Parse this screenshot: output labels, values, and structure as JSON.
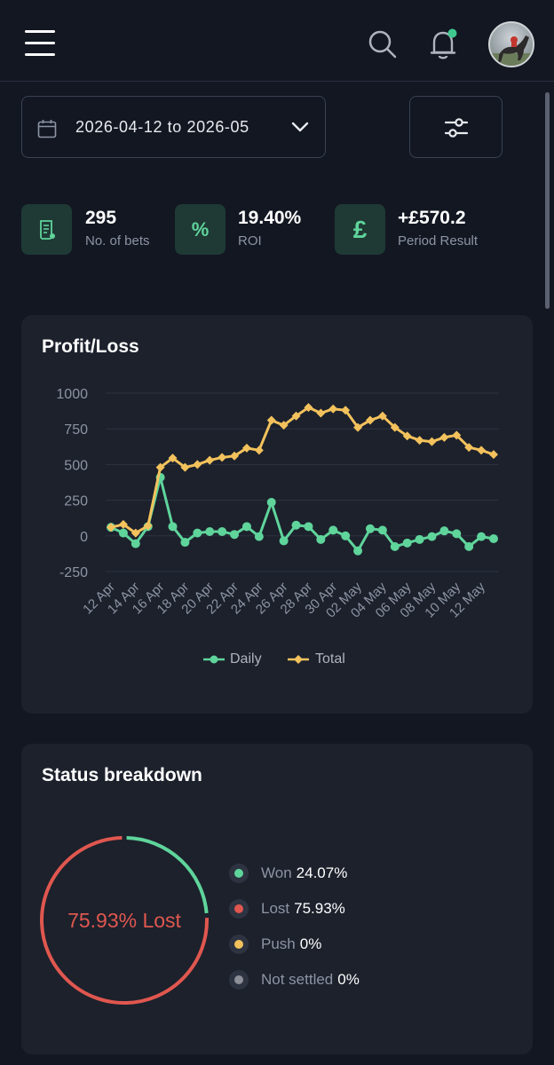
{
  "header": {
    "menu_icon": "hamburger-icon",
    "search_icon": "search-icon",
    "notification_icon": "bell-icon",
    "notification_dot_color": "#3fc98f",
    "avatar": "user-avatar"
  },
  "filters": {
    "date_range": "2026-04-12 to 2026-05",
    "calendar_icon": "calendar-icon",
    "dropdown_icon": "chevron-down-icon",
    "filter_icon": "sliders-icon"
  },
  "stats": [
    {
      "icon": "receipt-icon",
      "value": "295",
      "label": "No. of bets"
    },
    {
      "icon": "percent-icon",
      "icon_text": "%",
      "value": "19.40%",
      "label": "ROI"
    },
    {
      "icon": "pound-icon",
      "icon_text": "£",
      "value": "+£570.2",
      "label": "Period Result"
    }
  ],
  "colors": {
    "accent": "#5fd49b",
    "daily": "#5fd49b",
    "total": "#f3c25c",
    "lost": "#e0574f",
    "won": "#5fd49b",
    "push": "#f3c25c",
    "not_settled": "#8d8f99"
  },
  "profit_loss": {
    "title": "Profit/Loss",
    "legend": {
      "daily": "Daily",
      "total": "Total"
    }
  },
  "chart_data": {
    "type": "line",
    "title": "Profit/Loss",
    "xlabel": "",
    "ylabel": "",
    "ylim": [
      -250,
      1000
    ],
    "yticks": [
      1000,
      750,
      500,
      250,
      0,
      -250
    ],
    "x_tick_labels": [
      "12 Apr",
      "14 Apr",
      "16 Apr",
      "18 Apr",
      "20 Apr",
      "22 Apr",
      "24 Apr",
      "26 Apr",
      "28 Apr",
      "30 Apr",
      "02 May",
      "04 May",
      "06 May",
      "08 May",
      "10 May",
      "12 May"
    ],
    "x": [
      "12 Apr",
      "13 Apr",
      "14 Apr",
      "15 Apr",
      "16 Apr",
      "17 Apr",
      "18 Apr",
      "19 Apr",
      "20 Apr",
      "21 Apr",
      "22 Apr",
      "23 Apr",
      "24 Apr",
      "25 Apr",
      "26 Apr",
      "27 Apr",
      "28 Apr",
      "29 Apr",
      "30 Apr",
      "01 May",
      "02 May",
      "03 May",
      "04 May",
      "05 May",
      "06 May",
      "07 May",
      "08 May",
      "09 May",
      "10 May",
      "11 May",
      "12 May",
      "13 May"
    ],
    "grid": true,
    "legend_position": "bottom",
    "series": [
      {
        "name": "Daily",
        "marker": "circle",
        "values": [
          60,
          20,
          -55,
          65,
          410,
          65,
          -45,
          20,
          30,
          30,
          10,
          65,
          -5,
          235,
          -35,
          75,
          65,
          -25,
          40,
          0,
          -105,
          50,
          40,
          -75,
          -50,
          -25,
          -5,
          35,
          15,
          -75,
          -5,
          -20
        ]
      },
      {
        "name": "Total",
        "marker": "diamond",
        "values": [
          60,
          80,
          20,
          70,
          480,
          545,
          480,
          500,
          530,
          550,
          560,
          615,
          600,
          810,
          775,
          840,
          900,
          860,
          890,
          880,
          760,
          810,
          840,
          760,
          700,
          670,
          660,
          690,
          705,
          620,
          600,
          570
        ]
      }
    ]
  },
  "status": {
    "title": "Status breakdown",
    "center_label": "75.93% Lost",
    "items": [
      {
        "label": "Won",
        "value": "24.07%",
        "percent": 24.07,
        "color": "#5fd49b"
      },
      {
        "label": "Lost",
        "value": "75.93%",
        "percent": 75.93,
        "color": "#e0574f"
      },
      {
        "label": "Push",
        "value": "0%",
        "percent": 0,
        "color": "#f3c25c"
      },
      {
        "label": "Not settled",
        "value": "0%",
        "percent": 0,
        "color": "#8d8f99"
      }
    ]
  }
}
